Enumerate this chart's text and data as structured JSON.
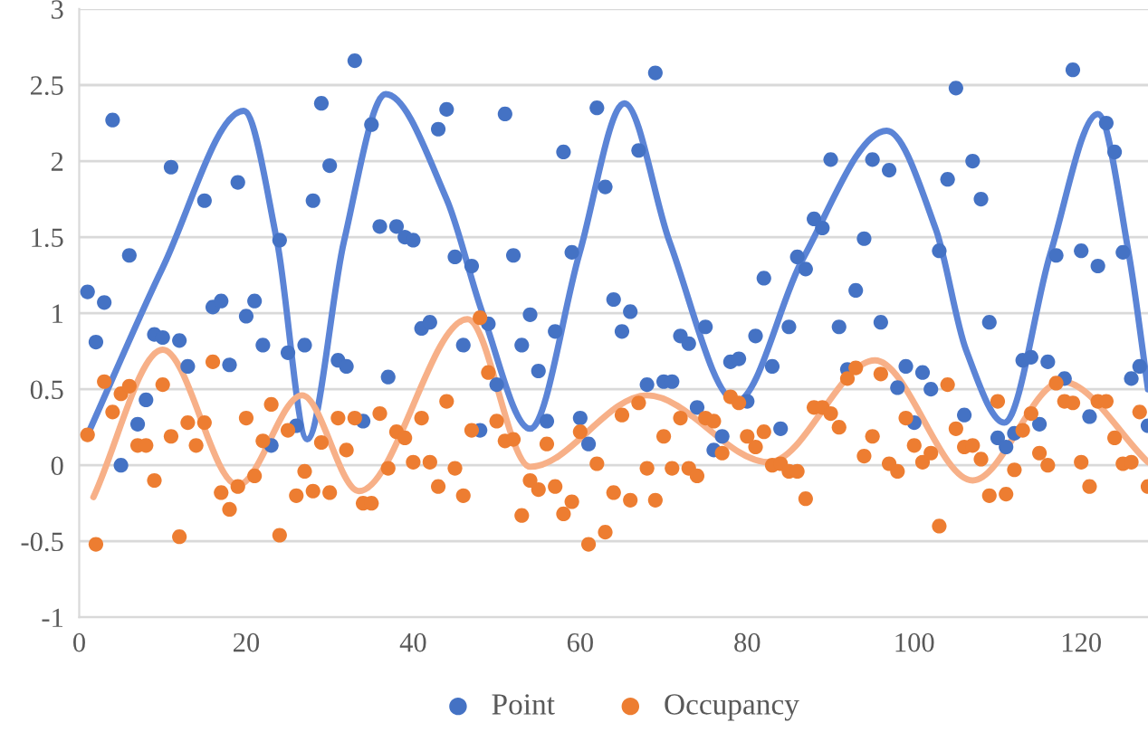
{
  "chart_data": {
    "type": "scatter",
    "xlim": [
      0,
      128
    ],
    "xticks": [
      0,
      20,
      40,
      60,
      80,
      100,
      120
    ],
    "ylim": [
      -1,
      3
    ],
    "yticks": [
      -1,
      -0.5,
      0,
      0.5,
      1,
      1.5,
      2,
      2.5,
      3
    ],
    "grid": "y",
    "legend": "bottom",
    "series": [
      {
        "name": "Point",
        "marker": "circle",
        "color": "#4472c4",
        "x": [
          1,
          2,
          3,
          4,
          5,
          6,
          7,
          8,
          9,
          10,
          11,
          12,
          13,
          15,
          16,
          17,
          18,
          19,
          20,
          21,
          22,
          23,
          24,
          25,
          26,
          27,
          28,
          29,
          30,
          31,
          32,
          33,
          34,
          35,
          36,
          37,
          38,
          39,
          40,
          41,
          42,
          43,
          44,
          45,
          46,
          47,
          48,
          49,
          50,
          51,
          52,
          53,
          54,
          55,
          56,
          57,
          58,
          59,
          60,
          61,
          62,
          63,
          64,
          65,
          66,
          67,
          68,
          69,
          70,
          71,
          72,
          73,
          74,
          75,
          76,
          77,
          78,
          79,
          80,
          81,
          82,
          83,
          84,
          85,
          86,
          87,
          88,
          89,
          90,
          91,
          92,
          93,
          94,
          95,
          96,
          97,
          98,
          99,
          100,
          101,
          102,
          103,
          104,
          105,
          106,
          107,
          108,
          109,
          110,
          111,
          112,
          113,
          114,
          115,
          116,
          117,
          118,
          119,
          120,
          121,
          122,
          123,
          124,
          125,
          126,
          127,
          128
        ],
        "values": [
          1.14,
          0.81,
          1.07,
          2.27,
          0.0,
          1.38,
          0.27,
          0.43,
          0.86,
          0.84,
          1.96,
          0.82,
          0.65,
          1.74,
          1.04,
          1.08,
          0.66,
          1.86,
          0.98,
          1.08,
          0.79,
          0.13,
          1.48,
          0.74,
          0.26,
          0.79,
          1.74,
          2.38,
          1.97,
          0.69,
          0.65,
          2.66,
          0.29,
          2.24,
          1.57,
          0.58,
          1.57,
          1.5,
          1.48,
          0.9,
          0.94,
          2.21,
          2.34,
          1.37,
          0.79,
          1.31,
          0.23,
          0.93,
          0.53,
          2.31,
          1.38,
          0.79,
          0.99,
          0.62,
          0.29,
          0.88,
          2.06,
          1.4,
          0.31,
          0.14,
          2.35,
          1.83,
          1.09,
          0.88,
          1.01,
          2.07,
          0.53,
          2.58,
          0.55,
          0.55,
          0.85,
          0.8,
          0.38,
          0.91,
          0.1,
          0.19,
          0.68,
          0.7,
          0.42,
          0.85,
          1.23,
          0.65,
          0.24,
          0.91,
          1.37,
          1.29,
          1.62,
          1.56,
          2.01,
          0.91,
          0.63,
          1.15,
          1.49,
          2.01,
          0.94,
          1.94,
          0.51,
          0.65,
          0.28,
          0.61,
          0.5,
          1.41,
          1.88,
          2.48,
          0.33,
          2.0,
          1.75,
          0.94,
          0.18,
          0.12,
          0.21,
          0.69,
          0.71,
          0.27,
          0.68,
          1.38,
          0.57,
          2.6,
          1.41,
          0.32,
          1.31,
          2.25,
          2.06,
          1.4,
          0.57,
          0.65,
          0.26
        ]
      },
      {
        "name": "Occupancy",
        "marker": "circle",
        "color": "#ed7d31",
        "x": [
          1,
          2,
          3,
          4,
          5,
          6,
          7,
          8,
          9,
          10,
          11,
          12,
          13,
          14,
          15,
          16,
          17,
          18,
          19,
          20,
          21,
          22,
          23,
          24,
          25,
          26,
          27,
          28,
          29,
          30,
          31,
          32,
          33,
          34,
          35,
          36,
          37,
          38,
          39,
          40,
          41,
          42,
          43,
          44,
          45,
          46,
          47,
          48,
          49,
          50,
          51,
          52,
          53,
          54,
          55,
          56,
          57,
          58,
          59,
          60,
          61,
          62,
          63,
          64,
          65,
          66,
          67,
          68,
          69,
          70,
          71,
          72,
          73,
          74,
          75,
          76,
          77,
          78,
          79,
          80,
          81,
          82,
          83,
          84,
          85,
          86,
          87,
          88,
          89,
          90,
          91,
          92,
          93,
          94,
          95,
          96,
          97,
          98,
          99,
          100,
          101,
          102,
          103,
          104,
          105,
          106,
          107,
          108,
          109,
          110,
          111,
          112,
          113,
          114,
          115,
          116,
          117,
          118,
          119,
          120,
          121,
          122,
          123,
          124,
          125,
          126,
          127,
          128
        ],
        "values": [
          0.2,
          -0.52,
          0.55,
          0.35,
          0.47,
          0.52,
          0.13,
          0.13,
          -0.1,
          0.53,
          0.19,
          -0.47,
          0.28,
          0.13,
          0.28,
          0.68,
          -0.18,
          -0.29,
          -0.14,
          0.31,
          -0.07,
          0.16,
          0.4,
          -0.46,
          0.23,
          -0.2,
          -0.04,
          -0.17,
          0.15,
          -0.18,
          0.31,
          0.1,
          0.31,
          -0.25,
          -0.25,
          0.34,
          -0.02,
          0.22,
          0.18,
          0.02,
          0.31,
          0.02,
          -0.14,
          0.42,
          -0.02,
          -0.2,
          0.23,
          0.97,
          0.61,
          0.29,
          0.16,
          0.17,
          -0.33,
          -0.1,
          -0.16,
          0.14,
          -0.14,
          -0.32,
          -0.24,
          0.22,
          -0.52,
          0.01,
          -0.44,
          -0.18,
          0.33,
          -0.23,
          0.41,
          -0.02,
          -0.23,
          0.19,
          -0.02,
          0.31,
          -0.02,
          -0.07,
          0.31,
          0.29,
          0.08,
          0.45,
          0.41,
          0.19,
          0.12,
          0.22,
          0.0,
          0.01,
          -0.04,
          -0.04,
          -0.22,
          0.38,
          0.38,
          0.34,
          0.25,
          0.57,
          0.64,
          0.06,
          0.19,
          0.6,
          0.01,
          -0.04,
          0.31,
          0.13,
          0.02,
          0.08,
          -0.4,
          0.53,
          0.24,
          0.12,
          0.13,
          0.04,
          -0.2,
          0.42,
          -0.19,
          -0.03,
          0.23,
          0.34,
          0.08,
          0.0,
          0.54,
          0.42,
          0.41,
          0.02,
          -0.14,
          0.42,
          0.42,
          0.18,
          0.01,
          0.02,
          0.35,
          -0.14
        ]
      },
      {
        "type": "line",
        "marker": "none",
        "color": "#5b84d6",
        "x": [
          1,
          10,
          19.7,
          23.7,
          27.3,
          31.7,
          36.7,
          44,
          48.3,
          54,
          59.9,
          65.3,
          70.7,
          78.7,
          86.6,
          96.7,
          102.6,
          106.2,
          110.8,
          116.3,
          122,
          125.7,
          128
        ],
        "values": [
          0.2,
          1.3,
          2.33,
          1.47,
          0.17,
          1.47,
          2.44,
          1.75,
          1.0,
          0.24,
          1.39,
          2.38,
          1.47,
          0.42,
          1.35,
          2.2,
          1.55,
          0.76,
          0.28,
          1.39,
          2.31,
          1.39,
          0.5
        ]
      },
      {
        "type": "line",
        "marker": "none",
        "color": "#f7b088",
        "x": [
          1.7,
          10,
          19,
          26.7,
          33.5,
          46.5,
          54,
          68,
          82.6,
          95.3,
          107,
          117.7,
          128
        ],
        "values": [
          -0.21,
          0.76,
          -0.13,
          0.46,
          -0.17,
          0.96,
          -0.01,
          0.46,
          0.02,
          0.69,
          -0.1,
          0.55,
          0.02
        ]
      }
    ]
  }
}
